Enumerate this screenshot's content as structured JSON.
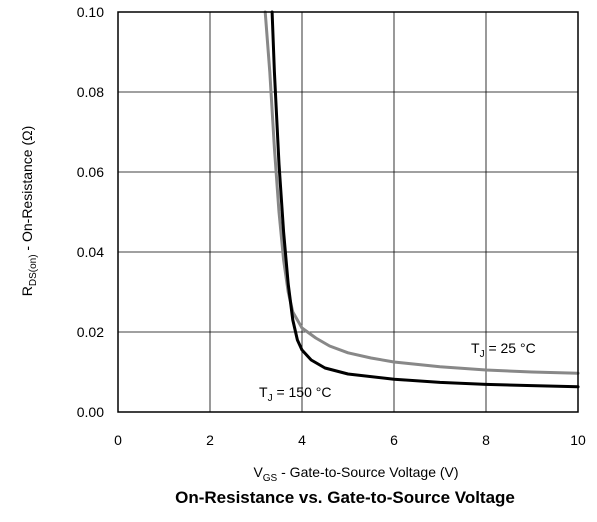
{
  "chart_data": {
    "type": "line",
    "title": "On-Resistance vs. Gate-to-Source Voltage",
    "xlabel": {
      "main": "V",
      "sub": "GS",
      "rest": " - Gate-to-Source Voltage (V)"
    },
    "ylabel": {
      "main": "R",
      "sub": "DS(on)",
      "rest": " - On-Resistance (Ω)"
    },
    "xlim": [
      0,
      10
    ],
    "ylim": [
      0,
      0.1
    ],
    "x_ticks": [
      "0",
      "2",
      "4",
      "6",
      "8",
      "10"
    ],
    "y_ticks": [
      "0.00",
      "0.02",
      "0.04",
      "0.06",
      "0.08",
      "0.10"
    ],
    "grid": true,
    "series": [
      {
        "name": "TJ = 25 °C",
        "color": "#888888",
        "x": [
          3.2,
          3.3,
          3.4,
          3.5,
          3.6,
          3.7,
          3.8,
          4.0,
          4.3,
          4.6,
          5.0,
          5.5,
          6.0,
          7.0,
          8.0,
          9.0,
          10.0
        ],
        "y": [
          0.1,
          0.085,
          0.066,
          0.05,
          0.038,
          0.03,
          0.025,
          0.021,
          0.0185,
          0.0165,
          0.0148,
          0.0135,
          0.0125,
          0.0113,
          0.0105,
          0.01,
          0.0097
        ]
      },
      {
        "name": "TJ = 150 °C",
        "color": "#000000",
        "x": [
          3.35,
          3.4,
          3.5,
          3.6,
          3.7,
          3.8,
          3.9,
          4.0,
          4.2,
          4.5,
          5.0,
          6.0,
          7.0,
          8.0,
          9.0,
          10.0
        ],
        "y": [
          0.1,
          0.085,
          0.062,
          0.045,
          0.032,
          0.023,
          0.018,
          0.0155,
          0.013,
          0.011,
          0.0095,
          0.0082,
          0.0074,
          0.0069,
          0.0066,
          0.0063
        ]
      }
    ],
    "annotations": [
      {
        "main": "T",
        "sub": "J",
        "rest": " = 25 °C",
        "series": 0
      },
      {
        "main": "T",
        "sub": "J",
        "rest": " = 150 °C",
        "series": 1
      }
    ]
  }
}
